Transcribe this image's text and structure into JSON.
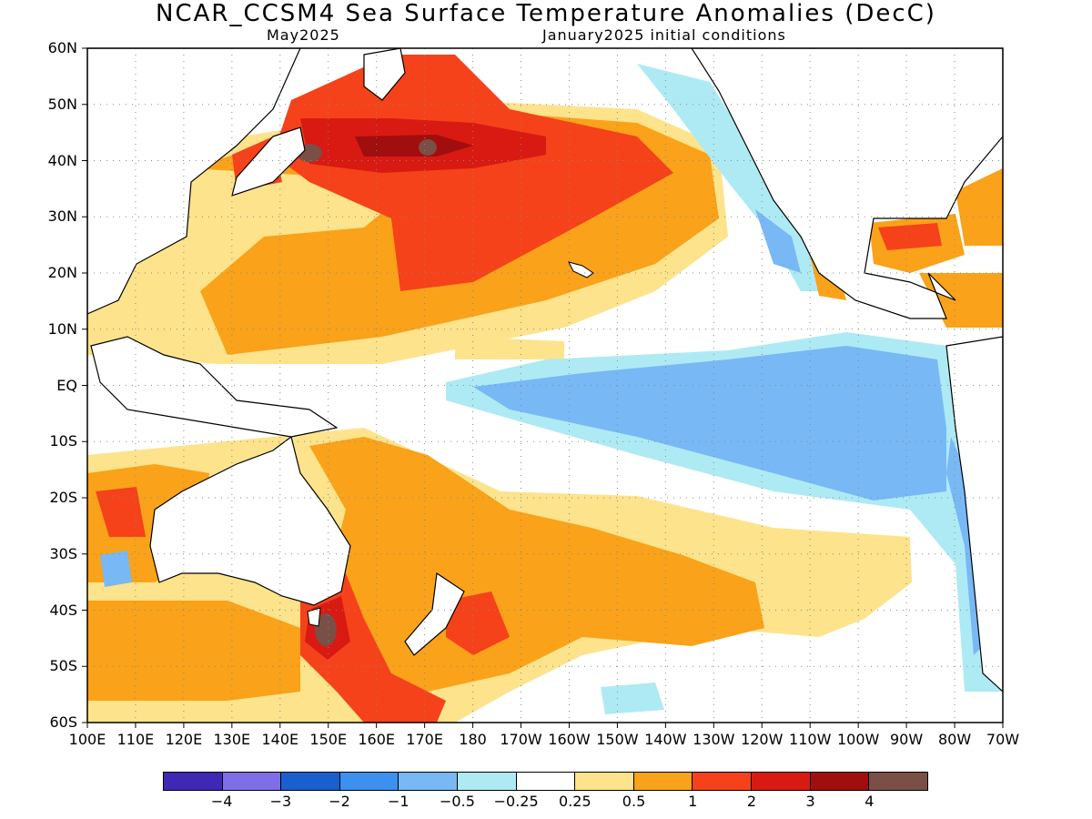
{
  "title": "NCAR_CCSM4 Sea Surface Temperature Anomalies (DecC)",
  "subtitle_left": "May2025",
  "subtitle_right": "January2025 initial conditions",
  "y_ticks": [
    "60N",
    "50N",
    "40N",
    "30N",
    "20N",
    "10N",
    "EQ",
    "10S",
    "20S",
    "30S",
    "40S",
    "50S",
    "60S"
  ],
  "x_ticks": [
    "100E",
    "110E",
    "120E",
    "130E",
    "140E",
    "150E",
    "160E",
    "170E",
    "180",
    "170W",
    "160W",
    "150W",
    "140W",
    "130W",
    "120W",
    "110W",
    "100W",
    "90W",
    "80W",
    "70W"
  ],
  "colorbar": {
    "colors": [
      "#3f28b4",
      "#7e6ee8",
      "#1a5ed0",
      "#3d8ff0",
      "#78b8f5",
      "#aeeaf4",
      "#ffffff",
      "#fde38c",
      "#f9a21a",
      "#f5421a",
      "#d91a12",
      "#a00e0e",
      "#7a4f45"
    ],
    "labels": [
      "−4",
      "−3",
      "−2",
      "−1",
      "−0.5",
      "−0.25",
      "0.25",
      "0.5",
      "1",
      "2",
      "3",
      "4"
    ]
  },
  "palette": {
    "warm_light": "#fde38c",
    "warm": "#f9a21a",
    "warm_strong": "#f5421a",
    "hot": "#d91a12",
    "very_hot": "#a00e0e",
    "extreme": "#7a4f45",
    "cool_light": "#aeeaf4",
    "cool": "#78b8f5",
    "cool_strong": "#3d8ff0"
  }
}
